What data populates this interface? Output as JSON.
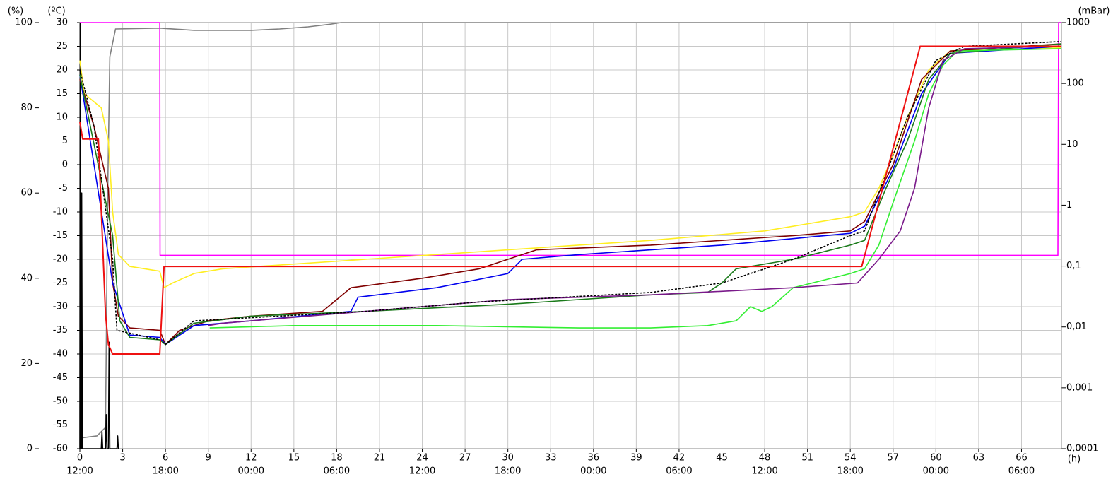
{
  "chart_data": {
    "type": "line",
    "y_unit": "(ºC)",
    "y2_unit": "(mBar)",
    "y3_unit": "(%)",
    "x_unit": "(h)",
    "xlim": [
      0,
      68.8
    ],
    "xticks": [
      0,
      3,
      6,
      9,
      12,
      15,
      18,
      21,
      24,
      27,
      30,
      33,
      36,
      39,
      42,
      45,
      48,
      51,
      54,
      57,
      60,
      63,
      66
    ],
    "xticks_time": [
      {
        "value": 0,
        "label": "12:00"
      },
      {
        "value": 6,
        "label": "18:00"
      },
      {
        "value": 12,
        "label": "00:00"
      },
      {
        "value": 18,
        "label": "06:00"
      },
      {
        "value": 24,
        "label": "12:00"
      },
      {
        "value": 30,
        "label": "18:00"
      },
      {
        "value": 36,
        "label": "00:00"
      },
      {
        "value": 42,
        "label": "06:00"
      },
      {
        "value": 48,
        "label": "12:00"
      },
      {
        "value": 54,
        "label": "18:00"
      },
      {
        "value": 60,
        "label": "00:00"
      },
      {
        "value": 66,
        "label": "06:00"
      }
    ],
    "ylim": [
      -60,
      30
    ],
    "yticks": [
      -60,
      -55,
      -50,
      -45,
      -40,
      -35,
      -30,
      -25,
      -20,
      -15,
      -10,
      -5,
      0,
      5,
      10,
      15,
      20,
      25,
      30
    ],
    "y3lim": [
      0,
      100
    ],
    "y3ticks": [
      0,
      20,
      40,
      60,
      80,
      100
    ],
    "y2lim": [
      0.0001,
      1000
    ],
    "y2log": true,
    "y2ticks": [
      {
        "value": 0.0001,
        "label": "0,0001"
      },
      {
        "value": 0.001,
        "label": "0,001"
      },
      {
        "value": 0.01,
        "label": "0,01"
      },
      {
        "value": 0.1,
        "label": "0,1"
      },
      1,
      10,
      100,
      1000
    ],
    "grid": true,
    "series": [
      {
        "color": "#808080",
        "axis": "y3",
        "x": [
          0,
          1.2,
          1.8,
          1.95,
          2.1,
          2.5,
          5.6,
          8,
          12,
          14,
          16,
          17.5,
          18.3,
          68.8
        ],
        "values": [
          2.5,
          3,
          5,
          60,
          92,
          98.5,
          98.7,
          98.2,
          98.2,
          98.5,
          99,
          99.6,
          100,
          100
        ]
      },
      {
        "color": "#000000",
        "axis": "y3",
        "x": [
          0,
          0.02,
          0.05,
          0.1,
          0.13,
          0.18,
          1.5,
          1.55,
          1.6,
          1.8,
          1.85,
          1.9,
          2.0,
          2.05,
          2.1,
          2.6,
          2.65,
          2.7
        ],
        "values": [
          0,
          100,
          0,
          0,
          60,
          0,
          0,
          4,
          0,
          0,
          8,
          0,
          0,
          25,
          0,
          0,
          3,
          0
        ]
      },
      {
        "color": "#ff00ff",
        "axis": "y2",
        "x": [
          0,
          5.6,
          5.62,
          68.55,
          68.6,
          68.8
        ],
        "values": [
          1000,
          1000,
          0.15,
          0.15,
          1000,
          1000
        ]
      },
      {
        "color": "#ffee22",
        "axis": "y",
        "x": [
          0,
          0.3,
          1.5,
          2,
          2.3,
          2.7,
          3.5,
          5.6,
          5.9,
          6.5,
          8,
          10,
          20,
          30,
          40,
          48,
          54,
          55,
          56,
          57,
          58,
          59.5,
          61,
          65,
          68.8
        ],
        "values": [
          22,
          15,
          12,
          5,
          -10,
          -19,
          -21.5,
          -22.5,
          -26,
          -25,
          -23,
          -22,
          -20,
          -18,
          -16,
          -14,
          -11,
          -10,
          -5,
          2,
          10,
          20,
          24,
          24.3,
          24.7
        ]
      },
      {
        "color": "#800000",
        "axis": "y",
        "x": [
          0,
          1,
          2,
          2.3,
          2.7,
          3.5,
          5.6,
          6,
          7,
          9,
          12,
          17,
          18,
          19,
          24,
          28,
          30,
          32,
          40,
          50,
          54,
          55,
          57,
          59,
          61,
          68.8
        ],
        "values": [
          18,
          8,
          -5,
          -25,
          -32,
          -34.5,
          -35,
          -38,
          -35,
          -33,
          -32,
          -31,
          -28.5,
          -26,
          -24,
          -22,
          -20,
          -18,
          -17,
          -15,
          -14,
          -12,
          0,
          18,
          24,
          25.5
        ]
      },
      {
        "color": "#0000ee",
        "axis": "y",
        "x": [
          0,
          2.3,
          3.5,
          5.6,
          6,
          8,
          12,
          19,
          19.5,
          25,
          30,
          31,
          35,
          45,
          54,
          55,
          57,
          59,
          61,
          68.8
        ],
        "values": [
          19,
          -25,
          -36,
          -36.5,
          -38,
          -34,
          -33,
          -31,
          -28,
          -26,
          -23,
          -20,
          -19,
          -17,
          -14.5,
          -13,
          -1,
          15,
          23.5,
          25
        ]
      },
      {
        "color": "#1a7a1a",
        "axis": "y",
        "x": [
          0,
          2.3,
          2.8,
          3.5,
          5.6,
          6,
          8,
          12,
          20,
          30,
          40,
          44,
          45,
          46,
          50,
          54,
          55,
          56.5,
          58,
          59.5,
          61,
          68.8
        ],
        "values": [
          19,
          -15,
          -33,
          -36.5,
          -37,
          -38,
          -33.5,
          -32,
          -31,
          -29.5,
          -27.5,
          -27,
          -25,
          -22,
          -20,
          -17,
          -16,
          -5,
          5,
          18,
          23.5,
          25.5
        ]
      },
      {
        "color": "#33ee33",
        "axis": "y",
        "x": [
          9.1,
          15,
          25,
          35,
          40,
          44,
          46,
          47,
          47.8,
          48.5,
          50,
          54,
          55,
          56,
          57,
          58.5,
          59.5,
          60.5,
          61.5,
          68.8
        ],
        "values": [
          -34.5,
          -34,
          -34,
          -34.5,
          -34.5,
          -34,
          -33,
          -30,
          -31,
          -30,
          -26,
          -23,
          -22,
          -17,
          -8,
          5,
          15,
          21,
          24,
          24.5
        ]
      },
      {
        "color": "#7a1a8a",
        "axis": "y",
        "x": [
          9,
          10,
          20,
          30,
          40,
          50,
          54.5,
          56,
          57.5,
          58.5,
          59.5,
          60.5,
          62,
          68.8
        ],
        "values": [
          -34,
          -33.5,
          -31,
          -28.5,
          -27.5,
          -26,
          -25,
          -20,
          -14,
          -5,
          12,
          22,
          24.5,
          25
        ]
      },
      {
        "color": "#000000",
        "axis": "y",
        "dash": true,
        "x": [
          0,
          1,
          2.3,
          2.6,
          5.6,
          6,
          8,
          20,
          28,
          40,
          45,
          50,
          54,
          55,
          58,
          60,
          62,
          68.8
        ],
        "values": [
          20,
          8,
          -20,
          -35,
          -37,
          -38,
          -33,
          -31,
          -29,
          -27,
          -25,
          -20,
          -15,
          -14,
          10,
          22,
          25,
          26
        ]
      },
      {
        "color": "#ee1111",
        "axis": "y",
        "width": 2,
        "x": [
          0,
          0.2,
          1.3,
          1.8,
          2,
          2.3,
          5.6,
          5.9,
          54.8,
          58.9,
          68.8
        ],
        "values": [
          9,
          5.4,
          5.4,
          -31.6,
          -38,
          -40,
          -40,
          -21.5,
          -21.5,
          25,
          25
        ]
      }
    ]
  }
}
